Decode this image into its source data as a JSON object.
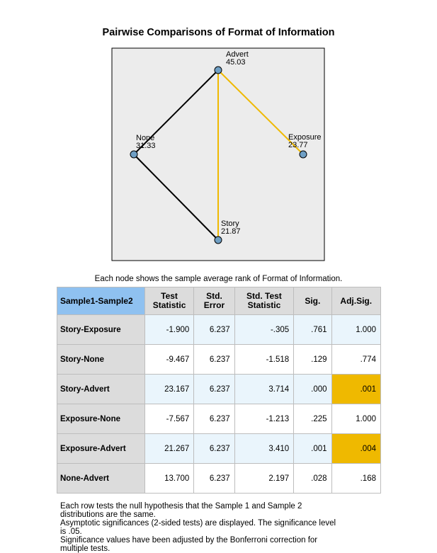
{
  "title": "Pairwise Comparisons of Format of Information",
  "chart_data": {
    "type": "network",
    "nodes": [
      {
        "name": "Advert",
        "value": "45.03"
      },
      {
        "name": "None",
        "value": "31.33"
      },
      {
        "name": "Exposure",
        "value": "23.77"
      },
      {
        "name": "Story",
        "value": "21.87"
      }
    ],
    "edges": [
      {
        "from": "None",
        "to": "Advert",
        "significant": false
      },
      {
        "from": "None",
        "to": "Story",
        "significant": false
      },
      {
        "from": "Advert",
        "to": "Story",
        "significant": true
      },
      {
        "from": "Advert",
        "to": "Exposure",
        "significant": true
      }
    ],
    "colors": {
      "nonsignificant": "#000000",
      "significant": "#efb900",
      "node": "#6f9fc4",
      "background": "#ececec"
    }
  },
  "caption": "Each node shows the sample average rank of Format of Information.",
  "table": {
    "headers": {
      "pair": "Sample1-Sample2",
      "test_stat_1": "Test",
      "test_stat_2": "Statistic",
      "std_error_1": "Std.",
      "std_error_2": "Error",
      "std_test_1": "Std. Test",
      "std_test_2": "Statistic",
      "sig": "Sig.",
      "adj_sig": "Adj.Sig."
    },
    "rows": [
      {
        "pair": "Story-Exposure",
        "test_statistic": "-1.900",
        "std_error": "6.237",
        "std_test_statistic": "-.305",
        "sig": ".761",
        "adj_sig": "1.000"
      },
      {
        "pair": "Story-None",
        "test_statistic": "-9.467",
        "std_error": "6.237",
        "std_test_statistic": "-1.518",
        "sig": ".129",
        "adj_sig": ".774"
      },
      {
        "pair": "Story-Advert",
        "test_statistic": "23.167",
        "std_error": "6.237",
        "std_test_statistic": "3.714",
        "sig": ".000",
        "adj_sig": ".001"
      },
      {
        "pair": "Exposure-None",
        "test_statistic": "-7.567",
        "std_error": "6.237",
        "std_test_statistic": "-1.213",
        "sig": ".225",
        "adj_sig": "1.000"
      },
      {
        "pair": "Exposure-Advert",
        "test_statistic": "21.267",
        "std_error": "6.237",
        "std_test_statistic": "3.410",
        "sig": ".001",
        "adj_sig": ".004"
      },
      {
        "pair": "None-Advert",
        "test_statistic": "13.700",
        "std_error": "6.237",
        "std_test_statistic": "2.197",
        "sig": ".028",
        "adj_sig": ".168"
      }
    ]
  },
  "footnotes": {
    "line1": "Each row tests the null hypothesis that the Sample 1 and Sample 2",
    "line2": "distributions are the same.",
    "line3": "Asymptotic significances (2-sided tests) are displayed. The significance level",
    "line4": "is .05.",
    "line5": "Significance values have been adjusted by the Bonferroni correction for",
    "line6": "multiple tests."
  }
}
